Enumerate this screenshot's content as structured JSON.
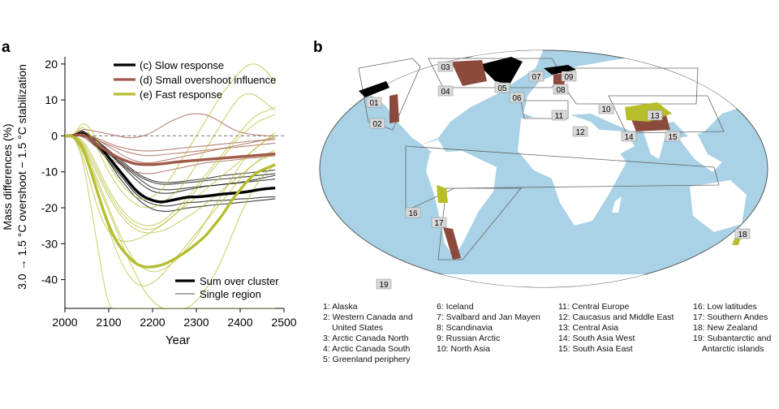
{
  "panel_a": {
    "label": "a",
    "ylabel_line1": "Mass differences (%)",
    "ylabel_line2": "3.0 → 1.5 °C overshoot − 1.5 °C stabilization",
    "xlabel": "Year",
    "legend": {
      "slow": "(c) Slow response",
      "small": "(d) Small overshoot influence",
      "fast": "(e) Fast response",
      "sum": "Sum over cluster",
      "single": "Single region"
    },
    "colors": {
      "slow": "#000000",
      "small": "#a15a4a",
      "fast": "#b6bd32"
    }
  },
  "panel_b": {
    "label": "b",
    "colors": {
      "ocean": "#a9d2e6",
      "land": "#ffffff",
      "glacier_brown": "#8c4a3c",
      "glacier_yellow": "#b8bd2a",
      "glacier_black": "#000000",
      "box": "#d9d9d9"
    },
    "region_tags": [
      "01",
      "02",
      "03",
      "04",
      "05",
      "06",
      "07",
      "08",
      "09",
      "10",
      "11",
      "12",
      "13",
      "14",
      "15",
      "16",
      "17",
      "18",
      "19"
    ],
    "regions": [
      "1: Alaska",
      "2: Western Canada and",
      "United States",
      "3: Arctic Canada North",
      "4: Arctic Canada South",
      "5: Greenland periphery",
      "6: Iceland",
      "7: Svalbard and Jan Mayen",
      "8: Scandinavia",
      "9: Russian Arctic",
      "10: North Asia",
      "11: Central Europe",
      "12: Caucasus and Middle East",
      "13: Central Asia",
      "14: South Asia West",
      "15: South Asia East",
      "16: Low latitudes",
      "17: Southern Andes",
      "18: New Zealand",
      "19: Subantarctic and",
      "Antarctic islands"
    ]
  },
  "chart_data": {
    "type": "line",
    "xlabel": "Year",
    "ylabel": "Mass differences (%) 3.0 → 1.5 °C overshoot − 1.5 °C stabilization",
    "xlim": [
      2000,
      2500
    ],
    "ylim": [
      -48,
      22
    ],
    "x_ticks": [
      2000,
      2100,
      2200,
      2300,
      2400,
      2500
    ],
    "y_ticks": [
      20,
      10,
      0,
      -10,
      -20,
      -30,
      -40
    ],
    "legend_position": "top-right",
    "x": [
      2020,
      2040,
      2060,
      2080,
      2100,
      2120,
      2140,
      2160,
      2180,
      2200,
      2220,
      2240,
      2260,
      2280,
      2300,
      2320,
      2340,
      2360,
      2380,
      2400,
      2420,
      2440,
      2460,
      2480
    ],
    "series": [
      {
        "name": "(c) Slow response",
        "group": "slow",
        "kind": "sum",
        "values": [
          0,
          1,
          -1,
          -3,
          -6,
          -9,
          -12,
          -15,
          -17,
          -18,
          -18.5,
          -18,
          -17.5,
          -17,
          -17,
          -16.8,
          -16.5,
          -16.2,
          -16,
          -15.8,
          -15.5,
          -15,
          -14.7,
          -14.5
        ]
      },
      {
        "name": "(d) Small overshoot influence",
        "group": "small",
        "kind": "sum",
        "values": [
          0,
          0.5,
          -1,
          -3,
          -4.5,
          -6,
          -7,
          -7.8,
          -8,
          -8,
          -7.8,
          -7.5,
          -7.2,
          -7,
          -6.8,
          -6.6,
          -6.4,
          -6.2,
          -6,
          -5.8,
          -5.6,
          -5.4,
          -5.2,
          -5
        ]
      },
      {
        "name": "(e) Fast response",
        "group": "fast",
        "kind": "sum",
        "values": [
          0,
          -3,
          -10,
          -18,
          -25,
          -30,
          -33,
          -35.5,
          -36.5,
          -36.5,
          -36,
          -35,
          -33.5,
          -32,
          -30,
          -28,
          -25,
          -22,
          -18,
          -15,
          -12,
          -10,
          -9,
          -8
        ]
      },
      {
        "group": "slow",
        "kind": "single",
        "values": [
          0,
          2,
          -1,
          -4,
          -7,
          -10,
          -13,
          -16,
          -18,
          -19,
          -19.5,
          -19.5,
          -19,
          -18.5,
          -18.5,
          -18.2,
          -18,
          -18,
          -17.8,
          -17.5,
          -17.5,
          -17.2,
          -17,
          -17
        ]
      },
      {
        "group": "slow",
        "kind": "single",
        "values": [
          0,
          1,
          -1,
          -3,
          -5,
          -7,
          -9,
          -11,
          -13,
          -14.5,
          -15,
          -15,
          -14.8,
          -14.5,
          -14.2,
          -14,
          -13.8,
          -13.5,
          -13.3,
          -13,
          -12.8,
          -12.5,
          -12.3,
          -12
        ]
      },
      {
        "group": "slow",
        "kind": "single",
        "values": [
          0,
          0.5,
          -1.5,
          -4,
          -7,
          -11,
          -14,
          -17,
          -19,
          -20.5,
          -21,
          -21,
          -20.5,
          -20,
          -19.8,
          -19.5,
          -19.2,
          -19,
          -18.8,
          -18.5,
          -18.3,
          -18,
          -17.8,
          -17.5
        ]
      },
      {
        "group": "slow",
        "kind": "single",
        "values": [
          0,
          0.5,
          -0.5,
          -2,
          -4,
          -6,
          -8,
          -10,
          -11.5,
          -12.5,
          -13,
          -13,
          -12.8,
          -12.5,
          -12.2,
          -12,
          -11.5,
          -11,
          -10.8,
          -10.5,
          -10.3,
          -10,
          -9.8,
          -9.5
        ]
      },
      {
        "group": "slow",
        "kind": "single",
        "values": [
          0,
          1.5,
          0,
          -2,
          -4.5,
          -7,
          -9.5,
          -12,
          -14,
          -15.5,
          -16,
          -16,
          -15.5,
          -15,
          -14.5,
          -14,
          -13.8,
          -13.5,
          -13.2,
          -13,
          -12.5,
          -12,
          -11.5,
          -11
        ]
      },
      {
        "group": "slow",
        "kind": "single",
        "values": [
          0,
          0,
          -1,
          -2.5,
          -4.5,
          -6.5,
          -8.5,
          -10.5,
          -12,
          -13,
          -13.5,
          -13.5,
          -13.2,
          -13,
          -12.8,
          -12.5,
          -12.2,
          -12,
          -11.8,
          -11.5,
          -11.3,
          -11,
          -10.8,
          -10.5
        ]
      },
      {
        "group": "small",
        "kind": "single",
        "values": [
          0,
          1,
          0,
          -1,
          -2,
          -3,
          -3.5,
          -4,
          -4.2,
          -4.2,
          -4,
          -3.8,
          -3.5,
          -3.2,
          -3,
          -2.8,
          -2.5,
          -2.3,
          -2,
          -1.8,
          -1.5,
          -1.3,
          -1.2,
          -1
        ]
      },
      {
        "group": "small",
        "kind": "single",
        "values": [
          0,
          2,
          1.5,
          1,
          0.5,
          0,
          -0.5,
          -0.5,
          0,
          1,
          2.5,
          4,
          5,
          6,
          6.2,
          6,
          5,
          3.5,
          2,
          1,
          0.5,
          0.2,
          0,
          0
        ]
      },
      {
        "group": "small",
        "kind": "single",
        "values": [
          0,
          0,
          -2,
          -4,
          -6,
          -7.5,
          -9,
          -10,
          -10.5,
          -10.5,
          -10,
          -9.5,
          -9,
          -8.5,
          -8,
          -7.5,
          -7.2,
          -7,
          -6.8,
          -6.5,
          -6.2,
          -6,
          -5.8,
          -5.5
        ]
      },
      {
        "group": "small",
        "kind": "single",
        "values": [
          0,
          0.5,
          -0.5,
          -1.5,
          -2.5,
          -3.5,
          -4.5,
          -5,
          -5.5,
          -5.5,
          -5.3,
          -5,
          -4.8,
          -4.5,
          -4.3,
          -4,
          -3.8,
          -3.5,
          -3.3,
          -3,
          -2.8,
          -2.5,
          -2.3,
          -2
        ]
      },
      {
        "group": "small",
        "kind": "single",
        "values": [
          0,
          1,
          0,
          -1.5,
          -3,
          -4.5,
          -6,
          -7,
          -7.5,
          -7.5,
          -7,
          -6.5,
          -6,
          -5.5,
          -5,
          -4.5,
          -4,
          -3.5,
          -3,
          -2.5,
          -2,
          -1.5,
          -1,
          -0.5
        ]
      },
      {
        "group": "fast",
        "kind": "single",
        "values": [
          0,
          -6,
          -20,
          -35,
          -48,
          -48,
          -48,
          -48,
          -48,
          -48,
          -48,
          -48,
          -48,
          -48,
          -48,
          -48,
          -48,
          -48,
          -48,
          -48,
          -48,
          -48,
          -48,
          -48
        ]
      },
      {
        "group": "fast",
        "kind": "single",
        "values": [
          0,
          -5,
          -14,
          -22,
          -27,
          -29,
          -29.5,
          -29,
          -28,
          -26.5,
          -25,
          -23,
          -21,
          -19,
          -17,
          -15,
          -13,
          -11,
          -9,
          -7,
          -5,
          -3,
          -1,
          1
        ]
      },
      {
        "group": "fast",
        "kind": "single",
        "values": [
          0,
          -4,
          -10,
          -18,
          -26,
          -33,
          -38,
          -41,
          -42,
          -41,
          -39,
          -36,
          -33,
          -30,
          -27,
          -24,
          -21,
          -18,
          -15,
          -12,
          -9,
          -7,
          -5,
          -4
        ]
      },
      {
        "group": "fast",
        "kind": "single",
        "values": [
          0,
          3,
          0,
          -5,
          -10,
          -14,
          -17,
          -19,
          -20,
          -20,
          -19,
          -17,
          -15,
          -12,
          -8,
          -4,
          0,
          4,
          8,
          11,
          12,
          11,
          9,
          7
        ]
      },
      {
        "group": "fast",
        "kind": "single",
        "values": [
          0,
          4,
          2,
          -3,
          -8,
          -12,
          -15,
          -17,
          -18,
          -17,
          -15,
          -12,
          -8,
          -4,
          0,
          4,
          8,
          12,
          15,
          18,
          20,
          20,
          18,
          15
        ]
      },
      {
        "group": "fast",
        "kind": "single",
        "values": [
          0,
          -2,
          -8,
          -14,
          -20,
          -26,
          -31,
          -35,
          -37,
          -38,
          -37.5,
          -36,
          -34,
          -31,
          -28,
          -24,
          -20,
          -16,
          -12,
          -8,
          -5,
          -3,
          -1,
          0
        ]
      },
      {
        "group": "fast",
        "kind": "single",
        "values": [
          0,
          -3,
          -9,
          -15,
          -21,
          -27,
          -33,
          -38,
          -43,
          -46,
          -48,
          -48,
          -48,
          -48,
          -46,
          -43,
          -39,
          -34,
          -28,
          -22,
          -17,
          -13,
          -10,
          -8
        ]
      },
      {
        "group": "fast",
        "kind": "single",
        "values": [
          0,
          -1,
          -5,
          -10,
          -15,
          -19,
          -22,
          -24,
          -25,
          -25,
          -24,
          -22,
          -20,
          -17,
          -14,
          -11,
          -8,
          -5,
          -2,
          1,
          4,
          6,
          7,
          8
        ]
      },
      {
        "group": "fast",
        "kind": "single",
        "values": [
          0,
          -2,
          -7,
          -12,
          -17,
          -21,
          -24,
          -26,
          -27,
          -27,
          -26.5,
          -25.5,
          -24,
          -22.5,
          -21,
          -19,
          -17,
          -15,
          -13,
          -11,
          -9,
          -7,
          -6,
          -5
        ]
      },
      {
        "group": "fast",
        "kind": "single",
        "values": [
          0,
          -1.5,
          -6,
          -11,
          -16,
          -20,
          -23,
          -25,
          -26,
          -26,
          -25,
          -23,
          -21,
          -18,
          -15,
          -12,
          -9,
          -6,
          -3,
          0,
          2,
          4,
          5,
          6
        ]
      }
    ]
  }
}
